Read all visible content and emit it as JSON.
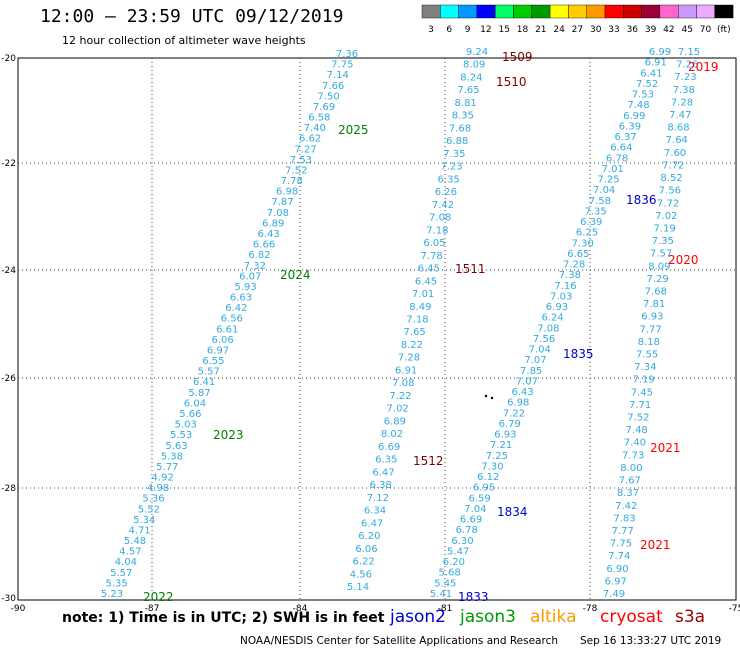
{
  "header": {
    "title": "12:00 — 23:59 UTC 09/12/2019",
    "subtitle": "12 hour collection of altimeter wave heights"
  },
  "legend": {
    "swatches": [
      {
        "color": "#808080",
        "label": "3"
      },
      {
        "color": "#00ffff",
        "label": "6"
      },
      {
        "color": "#0099ff",
        "label": "9"
      },
      {
        "color": "#0000ff",
        "label": "12"
      },
      {
        "color": "#00ff66",
        "label": "15"
      },
      {
        "color": "#00cc00",
        "label": "18"
      },
      {
        "color": "#009900",
        "label": "21"
      },
      {
        "color": "#ffff00",
        "label": "24"
      },
      {
        "color": "#ffcc00",
        "label": "27"
      },
      {
        "color": "#ff9900",
        "label": "30"
      },
      {
        "color": "#ff0000",
        "label": "33"
      },
      {
        "color": "#cc0000",
        "label": "36"
      },
      {
        "color": "#990033",
        "label": "39"
      },
      {
        "color": "#ff66cc",
        "label": "42"
      },
      {
        "color": "#cc99ff",
        "label": "45"
      },
      {
        "color": "#eeaaff",
        "label": "70"
      },
      {
        "color": "#000000",
        "label": "(ft)"
      }
    ]
  },
  "map": {
    "lat_labels": [
      "-20",
      "-22",
      "-24",
      "-26",
      "-28",
      "-30"
    ],
    "lon_labels": [
      "-90",
      "-87",
      "-84",
      "-81",
      "-78",
      "-75"
    ],
    "track_point_color": "#33aadd",
    "tracks": [
      {
        "id": "track-a",
        "values": [
          "5.23",
          "5.35",
          "5.57",
          "4.04",
          "4.57",
          "5.48",
          "4.71",
          "5.34",
          "5.52",
          "5.36",
          "4.98",
          "4.92",
          "5.77",
          "5.38",
          "5.63",
          "5.53",
          "5.03",
          "5.66",
          "6.04",
          "5.87",
          "6.41",
          "5.57",
          "6.55",
          "6.97",
          "6.06",
          "6.61",
          "6.56",
          "6.42",
          "6.63",
          "5.93",
          "6.07",
          "7.32",
          "6.82",
          "6.66",
          "6.43",
          "6.89",
          "7.08",
          "7.87",
          "6.98",
          "7.78",
          "7.52",
          "7.53",
          "7.27",
          "6.62",
          "7.40",
          "6.58",
          "7.69",
          "7.50",
          "7.66",
          "7.14",
          "7.75",
          "7.36"
        ]
      },
      {
        "id": "track-b",
        "values": [
          "5.14",
          "4.56",
          "6.22",
          "6.06",
          "6.20",
          "6.47",
          "6.34",
          "7.12",
          "6.38",
          "6.47",
          "6.35",
          "6.69",
          "8.02",
          "6.89",
          "7.02",
          "7.22",
          "7.08",
          "6.91",
          "7.28",
          "8.22",
          "7.65",
          "7.18",
          "8.49",
          "7.01",
          "6.45",
          "6.45",
          "7.78",
          "6.05",
          "7.18",
          "7.08",
          "7.42",
          "6.26",
          "6.35",
          "7.23",
          "7.35",
          "6.88",
          "7.68",
          "8.35",
          "8.81",
          "7.65",
          "8.24",
          "8.09",
          "9.24"
        ]
      },
      {
        "id": "track-c",
        "values": [
          "5.41",
          "5.45",
          "5.68",
          "6.20",
          "5.47",
          "6.30",
          "6.78",
          "6.69",
          "7.04",
          "6.59",
          "6.95",
          "6.12",
          "7.30",
          "7.25",
          "7.21",
          "6.93",
          "6.79",
          "7.22",
          "6.98",
          "6.43",
          "7.07",
          "7.85",
          "7.07",
          "7.04",
          "7.56",
          "7.08",
          "6.24",
          "6.93",
          "7.03",
          "7.16",
          "7.38",
          "7.28",
          "6.65",
          "7.30",
          "6.25",
          "6.39",
          "7.35",
          "7.58",
          "7.04",
          "7.25",
          "7.01",
          "6.78",
          "6.64",
          "6.37",
          "6.39",
          "6.99",
          "7.48",
          "7.53",
          "7.52",
          "6.41",
          "6.91",
          "6.99"
        ]
      },
      {
        "id": "track-d",
        "values": [
          "7.49",
          "6.97",
          "6.90",
          "7.74",
          "7.75",
          "7.77",
          "7.83",
          "7.42",
          "8.37",
          "7.67",
          "8.00",
          "7.73",
          "7.40",
          "7.48",
          "7.52",
          "7.71",
          "7.45",
          "7.19",
          "7.34",
          "7.55",
          "8.18",
          "7.77",
          "6.93",
          "7.81",
          "7.68",
          "7.29",
          "8.09",
          "7.57",
          "7.35",
          "7.19",
          "7.02",
          "7.72",
          "7.56",
          "8.52",
          "7.72",
          "7.60",
          "7.64",
          "8.68",
          "7.47",
          "7.28",
          "7.38",
          "7.23",
          "7.26",
          "7.15"
        ]
      }
    ],
    "time_labels": [
      {
        "text": "1509",
        "color": "#800000"
      },
      {
        "text": "1510",
        "color": "#800000"
      },
      {
        "text": "1511",
        "color": "#800000"
      },
      {
        "text": "1512",
        "color": "#800000"
      },
      {
        "text": "2025",
        "color": "#008000"
      },
      {
        "text": "2024",
        "color": "#008000"
      },
      {
        "text": "2023",
        "color": "#008000"
      },
      {
        "text": "2022",
        "color": "#008000"
      },
      {
        "text": "1836",
        "color": "#0000cc"
      },
      {
        "text": "1835",
        "color": "#0000cc"
      },
      {
        "text": "1834",
        "color": "#0000cc"
      },
      {
        "text": "1833",
        "color": "#0000cc"
      },
      {
        "text": "2019",
        "color": "#ff0000"
      },
      {
        "text": "2020",
        "color": "#ff0000"
      },
      {
        "text": "2021",
        "color": "#ff0000"
      },
      {
        "text": "2021",
        "color": "#ff0000"
      }
    ]
  },
  "footer": {
    "note": "note:  1) Time is in UTC; 2) SWH is in feet",
    "satellites": [
      {
        "name": "jason2",
        "color": "#0000cc"
      },
      {
        "name": "jason3",
        "color": "#009900"
      },
      {
        "name": "altika",
        "color": "#ff9900"
      },
      {
        "name": "cryosat",
        "color": "#ff0000"
      },
      {
        "name": "s3a",
        "color": "#990000"
      }
    ],
    "credit": "NOAA/NESDIS Center for Satellite Applications and Research",
    "timestamp": "Sep 16 13:33:27 UTC 2019"
  }
}
